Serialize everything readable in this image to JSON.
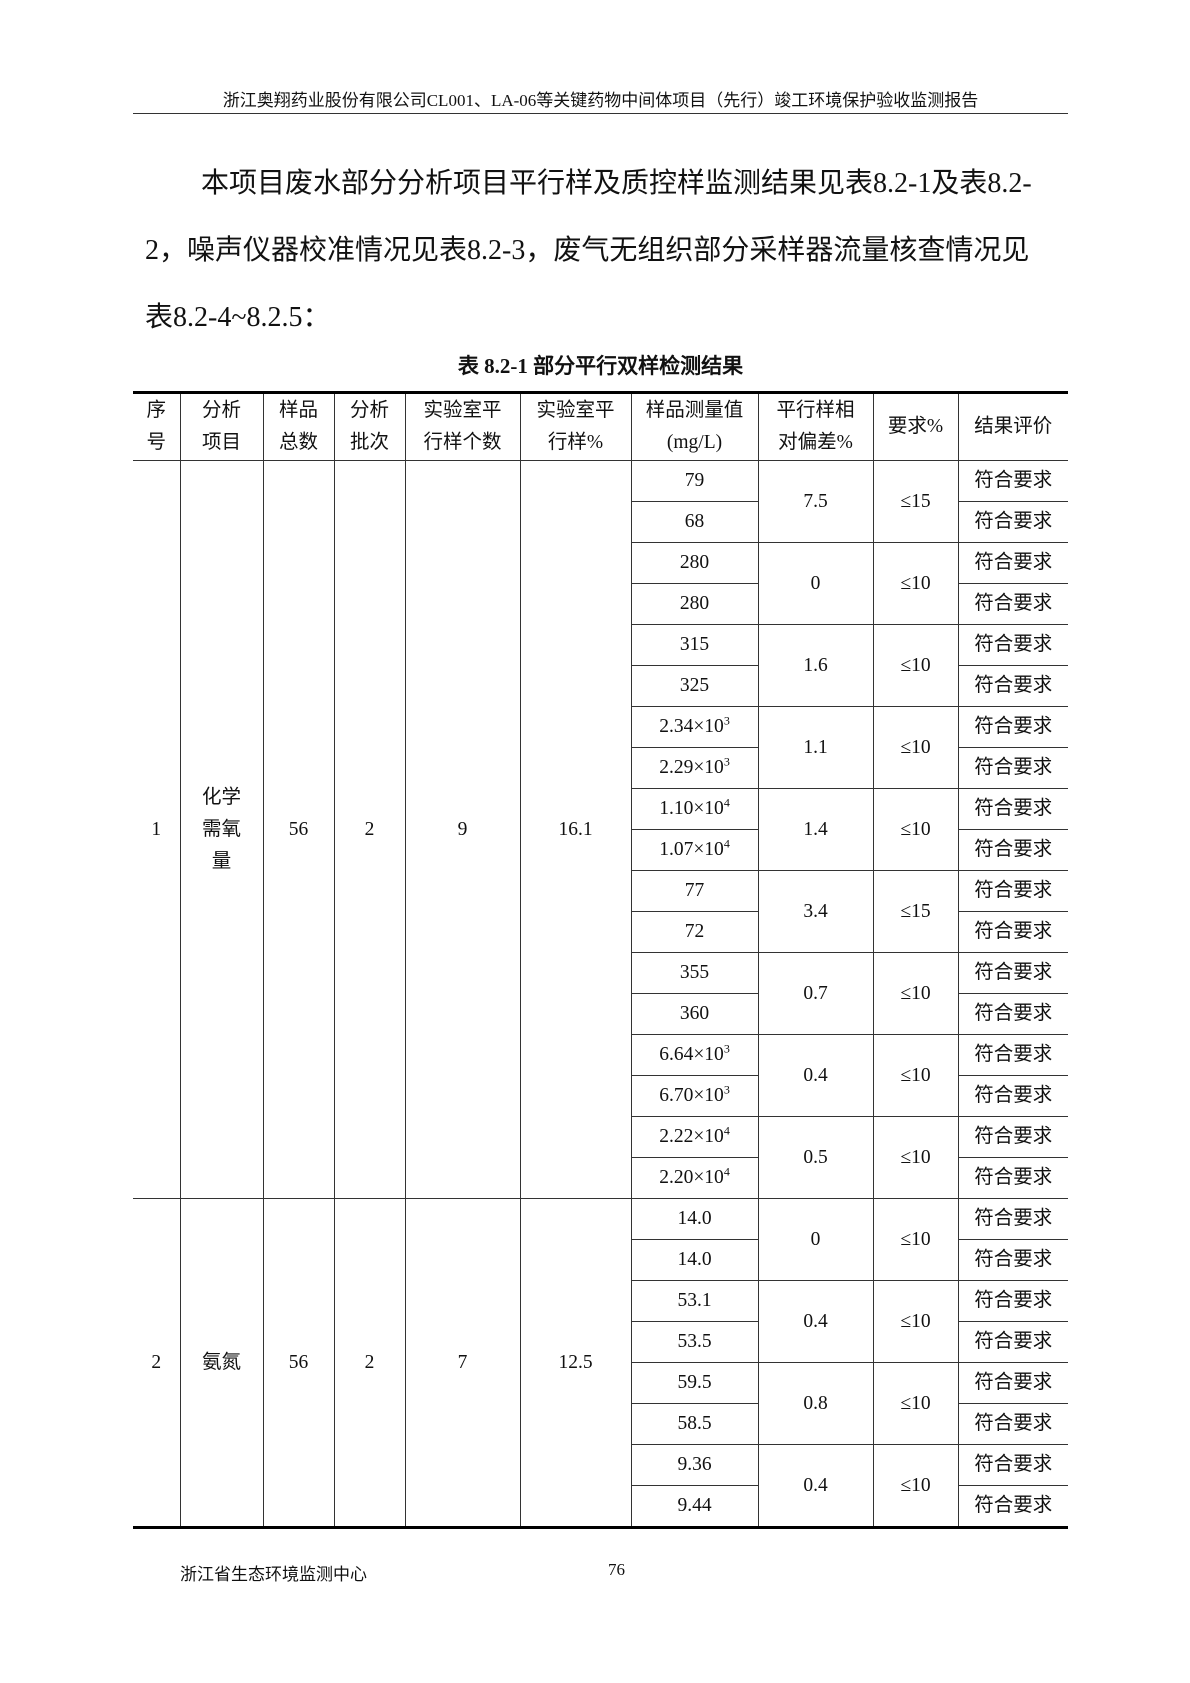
{
  "header": "浙江奥翔药业股份有限公司CL001、LA-06等关键药物中间体项目（先行）竣工环境保护验收监测报告",
  "paragraph": "本项目废水部分分析项目平行样及质控样监测结果见表8.2-1及表8.2-2，噪声仪器校准情况见表8.2-3，废气无组织部分采样器流量核查情况见表8.2-4~8.2.5：",
  "caption": "表 8.2-1  部分平行双样检测结果",
  "columns": [
    "序号",
    "分析项目",
    "样品总数",
    "分析批次",
    "实验室平行样个数",
    "实验室平行样%",
    "样品测量值(mg/L)",
    "平行样相对偏差%",
    "要求%",
    "结果评价"
  ],
  "column_html": [
    "序<br>号",
    "分析<br>项目",
    "样品<br>总数",
    "分析<br>批次",
    "实验室平<br>行样个数",
    "实验室平<br>行样%",
    "样品测量值<br>(mg/L)",
    "平行样相<br>对偏差%",
    "要求%",
    "结果评价"
  ],
  "groups": [
    {
      "no": "1",
      "item": "化学需氧量",
      "item_html": "化学<br>需氧<br>量",
      "total": "56",
      "batches": "2",
      "parallel_count": "9",
      "parallel_pct": "16.1",
      "pairs": [
        {
          "values": [
            "79",
            "68"
          ],
          "rd": "7.5",
          "req": "≤15"
        },
        {
          "values": [
            "280",
            "280"
          ],
          "rd": "0",
          "req": "≤10"
        },
        {
          "values": [
            "315",
            "325"
          ],
          "rd": "1.6",
          "req": "≤10"
        },
        {
          "values": [
            "2.34×10^3",
            "2.29×10^3"
          ],
          "rd": "1.1",
          "req": "≤10"
        },
        {
          "values": [
            "1.10×10^4",
            "1.07×10^4"
          ],
          "rd": "1.4",
          "req": "≤10"
        },
        {
          "values": [
            "77",
            "72"
          ],
          "rd": "3.4",
          "req": "≤15"
        },
        {
          "values": [
            "355",
            "360"
          ],
          "rd": "0.7",
          "req": "≤10"
        },
        {
          "values": [
            "6.64×10^3",
            "6.70×10^3"
          ],
          "rd": "0.4",
          "req": "≤10"
        },
        {
          "values": [
            "2.22×10^4",
            "2.20×10^4"
          ],
          "rd": "0.5",
          "req": "≤10"
        }
      ]
    },
    {
      "no": "2",
      "item": "氨氮",
      "item_html": "氨氮",
      "total": "56",
      "batches": "2",
      "parallel_count": "7",
      "parallel_pct": "12.5",
      "pairs": [
        {
          "values": [
            "14.0",
            "14.0"
          ],
          "rd": "0",
          "req": "≤10"
        },
        {
          "values": [
            "53.1",
            "53.5"
          ],
          "rd": "0.4",
          "req": "≤10"
        },
        {
          "values": [
            "59.5",
            "58.5"
          ],
          "rd": "0.8",
          "req": "≤10"
        },
        {
          "values": [
            "9.36",
            "9.44"
          ],
          "rd": "0.4",
          "req": "≤10"
        }
      ]
    }
  ],
  "evaluation": "符合要求",
  "footer": {
    "org": "浙江省生态环境监测中心",
    "page": "76"
  }
}
